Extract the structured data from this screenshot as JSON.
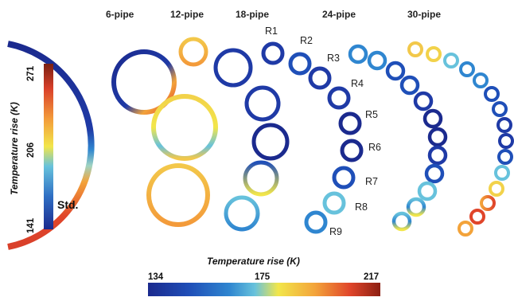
{
  "columns": [
    {
      "label": "6-pipe"
    },
    {
      "label": "12-pipe"
    },
    {
      "label": "18-pipe"
    },
    {
      "label": "24-pipe"
    },
    {
      "label": "30-pipe"
    }
  ],
  "row_labels": [
    "R1",
    "R2",
    "R3",
    "R4",
    "R5",
    "R6",
    "R7",
    "R8",
    "R9"
  ],
  "standard": {
    "label": "Std.",
    "colorbar_title": "Temperature rise (K)",
    "ticks": [
      "271",
      "206",
      "141"
    ]
  },
  "bottom_colorbar": {
    "title": "Temperature rise (K)",
    "ticks": [
      "134",
      "175",
      "217"
    ]
  },
  "colormap": [
    "#1b2a8e",
    "#1f4fb8",
    "#2f86d0",
    "#67c2dc",
    "#f2e64a",
    "#f3a33a",
    "#e0452a",
    "#8c1f12"
  ]
}
